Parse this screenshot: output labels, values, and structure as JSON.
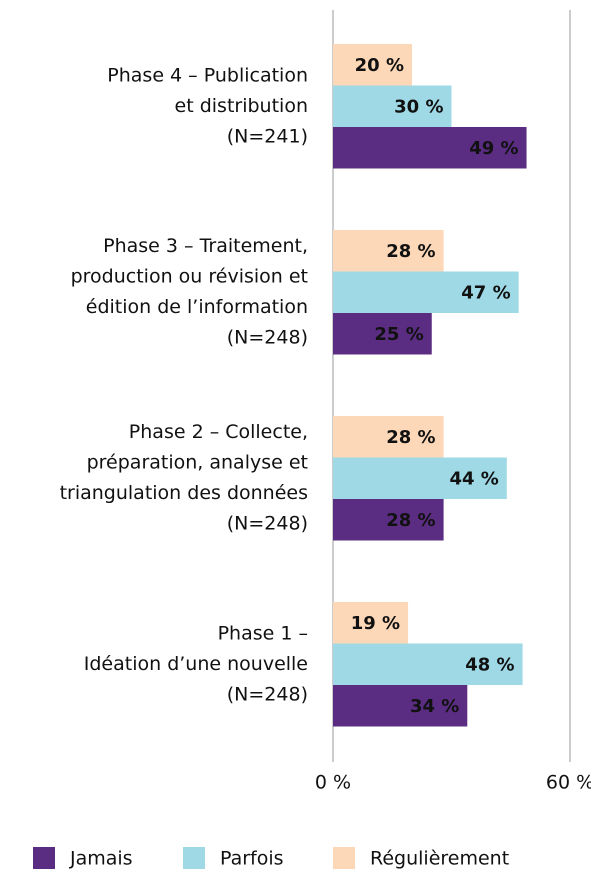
{
  "chart_data": {
    "type": "bar",
    "orientation": "horizontal",
    "categories": [
      [
        "Phase 4 – Publication",
        "et distribution",
        "(N=241)"
      ],
      [
        "Phase 3 – Traitement,",
        "production ou révision et",
        "édition de l’information",
        "(N=248)"
      ],
      [
        "Phase 2 – Collecte,",
        "préparation, analyse et",
        "triangulation des données",
        "(N=248)"
      ],
      [
        "Phase 1 –",
        "Idéation d’une nouvelle",
        "(N=248)"
      ]
    ],
    "series": [
      {
        "name": "Jamais",
        "color": "#5b2d82",
        "values": [
          49,
          25,
          28,
          34
        ],
        "value_labels": [
          "49 %",
          "25 %",
          "28 %",
          "34 %"
        ]
      },
      {
        "name": "Parfois",
        "color": "#9fd9e6",
        "values": [
          30,
          47,
          44,
          48
        ],
        "value_labels": [
          "30 %",
          "47 %",
          "44 %",
          "48 %"
        ]
      },
      {
        "name": "Régulièrement",
        "color": "#fdd8b8",
        "values": [
          20,
          28,
          28,
          19
        ],
        "value_labels": [
          "20 %",
          "28 %",
          "28 %",
          "19 %"
        ]
      }
    ],
    "xlim": [
      0,
      60
    ],
    "xticks": [
      {
        "value": 0,
        "label": "0 %"
      },
      {
        "value": 60,
        "label": "60 %"
      }
    ],
    "grid": true,
    "legend": "bottom"
  }
}
